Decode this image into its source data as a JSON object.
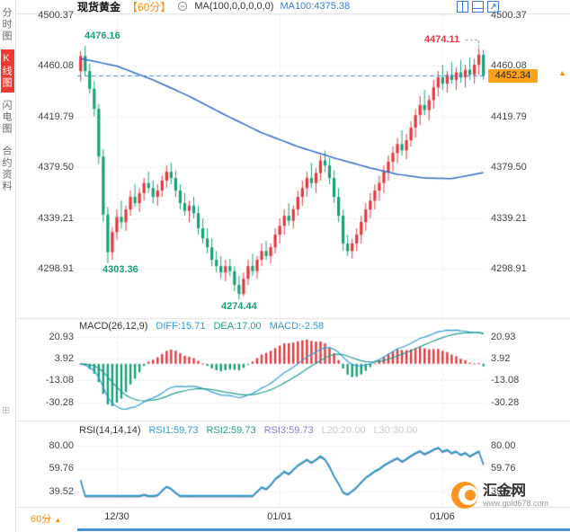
{
  "sidebar": {
    "items": [
      {
        "label": "分时图",
        "active": false
      },
      {
        "label": "K线图",
        "active": true
      },
      {
        "label": "闪电图",
        "active": false
      },
      {
        "label": "合约资料",
        "active": false
      }
    ]
  },
  "toolbar": {
    "symbol": "现货黄金",
    "period": "【60分】",
    "ma_settings": "MA(100,0,0,0,0,0)",
    "ma_readout": "MA100:4375.38"
  },
  "axes": {
    "main_labels": [
      "4500.37",
      "4460.08",
      "4419.79",
      "4379.50",
      "4339.21",
      "4298.91"
    ],
    "macd_labels": [
      "20.93",
      "3.92",
      "-13.08",
      "-30.28"
    ],
    "rsi_labels": [
      "80.00",
      "59.76",
      "39.52"
    ],
    "period_label": "60分",
    "period_arrow": "▲"
  },
  "annotations": {
    "high_left": "4476.16",
    "high_right": "4474.11",
    "low_mid": "4303.36",
    "low_bottom": "4274.44",
    "last_price": "4452.34",
    "up_arrow": "▲"
  },
  "macd_header": {
    "title": "MACD(26,12,9)",
    "diff": "DIFF:15.71",
    "dea": "DEA:17.00",
    "macd": "MACD:-2.58"
  },
  "rsi_header": {
    "title": "RSI(14,14,14)",
    "rsi1": "RSI1:59.73",
    "rsi2": "RSI2:59.73",
    "rsi3": "RSI3:59.73",
    "l20": "L20:20.00",
    "l30": "L30:30.00"
  },
  "watermark": {
    "name": "汇金网",
    "url": "www.gold678.com"
  },
  "colors": {
    "up": "#e0393e",
    "down": "#18a076",
    "ma": "#2f6bc6",
    "diff": "#2e9bd6",
    "dea": "#1f9e8e",
    "rsi1": "#2e9bd6",
    "rsi2": "#1f9e8e",
    "rsi3": "#8a7bd6",
    "accent": "#ff8c00",
    "link": "#3a7bd5",
    "tag_bg": "#ffa21a",
    "grid": "#e7e7e7",
    "sep": "#dcdcdc",
    "last_line": "#4a90d9",
    "connector": "#999999",
    "scroll": "#4a90d9"
  },
  "chart_data": {
    "type": "candlestick",
    "title": "现货黄金 60分",
    "y_ticks_main": [
      4500.37,
      4460.08,
      4419.79,
      4379.5,
      4339.21,
      4298.91
    ],
    "x_ticks": [
      {
        "label": "12/30",
        "index": 8
      },
      {
        "label": "01/01",
        "index": 44
      },
      {
        "label": "01/06",
        "index": 80
      }
    ],
    "last_price": 4452.34,
    "marked_high_left": 4476.16,
    "marked_high_right": 4474.11,
    "marked_low_mid": 4303.36,
    "marked_low_bottom": 4274.44,
    "ma100_last": 4375.38,
    "ma100_control_points": [
      [
        0,
        4466
      ],
      [
        8,
        4460
      ],
      [
        16,
        4449
      ],
      [
        24,
        4436
      ],
      [
        32,
        4421
      ],
      [
        40,
        4407
      ],
      [
        48,
        4396
      ],
      [
        56,
        4387
      ],
      [
        64,
        4379
      ],
      [
        70,
        4374
      ],
      [
        76,
        4371
      ],
      [
        82,
        4370.5
      ],
      [
        89,
        4375.38
      ]
    ],
    "candles": [
      [
        4456,
        4472,
        4448,
        4468
      ],
      [
        4468,
        4476.16,
        4452,
        4456
      ],
      [
        4456,
        4462,
        4438,
        4442
      ],
      [
        4442,
        4448,
        4420,
        4426
      ],
      [
        4426,
        4430,
        4382,
        4388
      ],
      [
        4388,
        4394,
        4336,
        4342
      ],
      [
        4342,
        4348,
        4303.36,
        4312
      ],
      [
        4312,
        4332,
        4306,
        4328
      ],
      [
        4328,
        4346,
        4322,
        4340
      ],
      [
        4340,
        4353,
        4331,
        4336
      ],
      [
        4336,
        4349,
        4329,
        4346
      ],
      [
        4346,
        4361,
        4341,
        4356
      ],
      [
        4356,
        4366,
        4348,
        4351
      ],
      [
        4351,
        4363,
        4344,
        4359
      ],
      [
        4359,
        4371,
        4353,
        4367
      ],
      [
        4367,
        4376,
        4359,
        4363
      ],
      [
        4363,
        4369,
        4351,
        4356
      ],
      [
        4356,
        4366,
        4349,
        4361
      ],
      [
        4361,
        4373,
        4356,
        4369
      ],
      [
        4369,
        4381,
        4363,
        4376
      ],
      [
        4376,
        4383,
        4366,
        4371
      ],
      [
        4371,
        4377,
        4356,
        4361
      ],
      [
        4361,
        4366,
        4346,
        4351
      ],
      [
        4351,
        4359,
        4341,
        4345
      ],
      [
        4345,
        4353,
        4336,
        4349
      ],
      [
        4349,
        4356,
        4339,
        4343
      ],
      [
        4343,
        4349,
        4326,
        4331
      ],
      [
        4331,
        4339,
        4319,
        4323
      ],
      [
        4323,
        4331,
        4311,
        4316
      ],
      [
        4316,
        4323,
        4301,
        4306
      ],
      [
        4306,
        4313,
        4296,
        4301
      ],
      [
        4301,
        4309,
        4291,
        4296
      ],
      [
        4296,
        4306,
        4289,
        4301
      ],
      [
        4301,
        4307,
        4293,
        4297
      ],
      [
        4297,
        4301,
        4281,
        4286
      ],
      [
        4286,
        4293,
        4274.44,
        4279
      ],
      [
        4279,
        4296,
        4277,
        4291
      ],
      [
        4291,
        4306,
        4286,
        4301
      ],
      [
        4301,
        4311,
        4293,
        4297
      ],
      [
        4297,
        4309,
        4291,
        4306
      ],
      [
        4306,
        4319,
        4301,
        4313
      ],
      [
        4313,
        4321,
        4306,
        4309
      ],
      [
        4309,
        4319,
        4303,
        4316
      ],
      [
        4316,
        4331,
        4311,
        4326
      ],
      [
        4326,
        4339,
        4319,
        4333
      ],
      [
        4333,
        4346,
        4326,
        4341
      ],
      [
        4341,
        4351,
        4333,
        4337
      ],
      [
        4337,
        4349,
        4331,
        4346
      ],
      [
        4346,
        4361,
        4341,
        4356
      ],
      [
        4356,
        4369,
        4349,
        4363
      ],
      [
        4363,
        4376,
        4356,
        4371
      ],
      [
        4371,
        4383,
        4363,
        4367
      ],
      [
        4367,
        4379,
        4359,
        4375
      ],
      [
        4375,
        4389,
        4369,
        4385
      ],
      [
        4385,
        4393,
        4376,
        4381
      ],
      [
        4381,
        4387,
        4366,
        4371
      ],
      [
        4371,
        4377,
        4351,
        4356
      ],
      [
        4356,
        4363,
        4336,
        4341
      ],
      [
        4341,
        4346,
        4313,
        4319
      ],
      [
        4319,
        4326,
        4309,
        4313
      ],
      [
        4313,
        4323,
        4307,
        4319
      ],
      [
        4319,
        4331,
        4313,
        4326
      ],
      [
        4326,
        4341,
        4319,
        4336
      ],
      [
        4336,
        4351,
        4329,
        4346
      ],
      [
        4346,
        4359,
        4339,
        4353
      ],
      [
        4353,
        4366,
        4346,
        4361
      ],
      [
        4361,
        4373,
        4353,
        4367
      ],
      [
        4367,
        4381,
        4359,
        4376
      ],
      [
        4376,
        4389,
        4369,
        4384
      ],
      [
        4384,
        4396,
        4376,
        4391
      ],
      [
        4391,
        4403,
        4383,
        4398
      ],
      [
        4398,
        4409,
        4389,
        4393
      ],
      [
        4393,
        4406,
        4386,
        4401
      ],
      [
        4401,
        4416,
        4396,
        4411
      ],
      [
        4411,
        4426,
        4403,
        4421
      ],
      [
        4421,
        4436,
        4413,
        4429
      ],
      [
        4429,
        4441,
        4421,
        4425
      ],
      [
        4425,
        4437,
        4417,
        4433
      ],
      [
        4433,
        4449,
        4426,
        4443
      ],
      [
        4443,
        4456,
        4436,
        4451
      ],
      [
        4451,
        4461,
        4441,
        4446
      ],
      [
        4446,
        4456,
        4439,
        4453
      ],
      [
        4453,
        4463,
        4446,
        4449
      ],
      [
        4449,
        4459,
        4441,
        4455
      ],
      [
        4455,
        4465,
        4447,
        4451
      ],
      [
        4451,
        4461,
        4443,
        4457
      ],
      [
        4457,
        4467,
        4449,
        4453
      ],
      [
        4453,
        4466,
        4446,
        4461
      ],
      [
        4461,
        4474.11,
        4453,
        4469
      ],
      [
        4469,
        4473,
        4449,
        4452.34
      ]
    ],
    "macd_panel": {
      "type": "macd",
      "params": [
        26,
        12,
        9
      ],
      "readout": {
        "diff": 15.71,
        "dea": 17.0,
        "macd": -2.58
      },
      "y_ticks": [
        20.93,
        3.92,
        -13.08,
        -30.28
      ]
    },
    "rsi_panel": {
      "type": "rsi",
      "params": [
        14,
        14,
        14
      ],
      "readout": {
        "rsi1": 59.73,
        "rsi2": 59.73,
        "rsi3": 59.73,
        "l20": 20.0,
        "l30": 30.0
      },
      "y_ticks": [
        80.0,
        59.76,
        39.52
      ]
    }
  }
}
